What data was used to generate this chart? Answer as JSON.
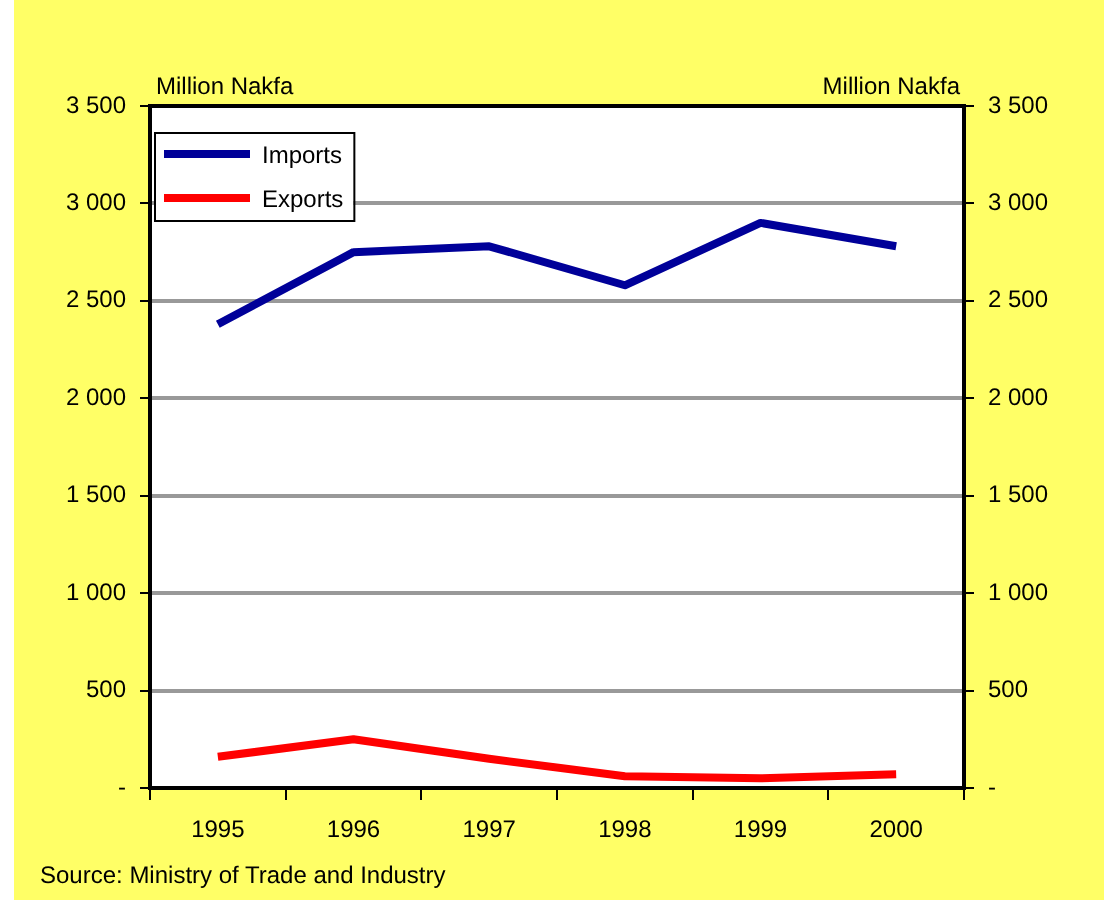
{
  "chart_data": {
    "type": "line",
    "categories": [
      "1995",
      "1996",
      "1997",
      "1998",
      "1999",
      "2000"
    ],
    "series": [
      {
        "name": "Imports",
        "color": "#000099",
        "values": [
          2380,
          2750,
          2780,
          2580,
          2900,
          2780
        ]
      },
      {
        "name": "Exports",
        "color": "#ff0000",
        "values": [
          160,
          250,
          150,
          60,
          50,
          70
        ]
      }
    ],
    "ylabel": "Million Nakfa",
    "y2label": "Million Nakfa",
    "ylim": [
      0,
      3500
    ],
    "yticks": [
      {
        "value": 0,
        "label": "-"
      },
      500,
      {
        "value": 1000,
        "label": "1 000"
      },
      {
        "value": 1500,
        "label": "1 500"
      },
      {
        "value": 2000,
        "label": "2 000"
      },
      {
        "value": 2500,
        "label": "2 500"
      },
      {
        "value": 3000,
        "label": "3 000"
      },
      {
        "value": 3500,
        "label": "3 500"
      }
    ],
    "y2lim": [
      0,
      3500
    ],
    "y2ticks": [
      {
        "value": 0,
        "label": "-"
      },
      500,
      {
        "value": 1000,
        "label": "1 000"
      },
      {
        "value": 1500,
        "label": "1 500"
      },
      {
        "value": 2000,
        "label": "2 000"
      },
      {
        "value": 2500,
        "label": "2 500"
      },
      {
        "value": 3000,
        "label": "3 000"
      },
      {
        "value": 3500,
        "label": "3 500"
      }
    ],
    "annotations": [
      "Source: Ministry of Trade and Industry"
    ],
    "grid": "y",
    "legend": "top left",
    "marker": "none",
    "line_style": "solid"
  }
}
